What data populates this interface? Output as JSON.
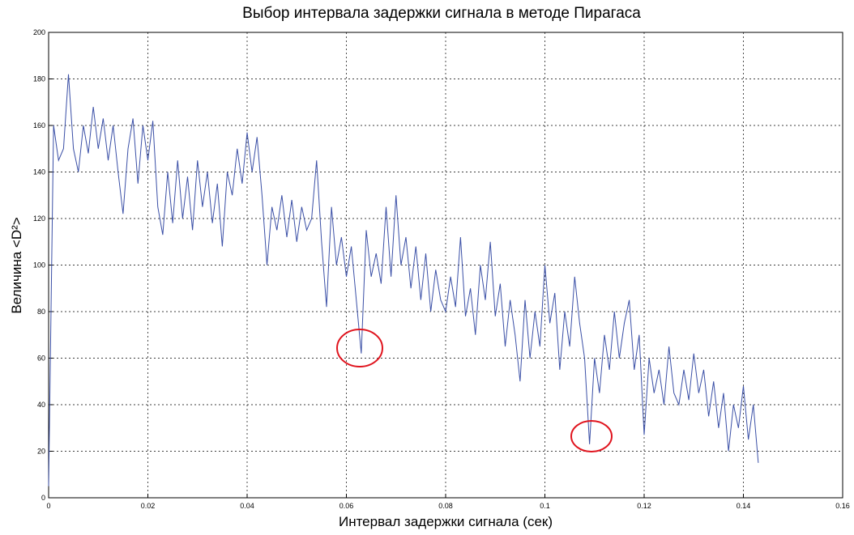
{
  "chart_data": {
    "type": "line",
    "title": "Выбор интервала задержки сигнала в методе Пирагаса",
    "xlabel": "Интервал задержки сигнала (сек)",
    "ylabel": "Величина <D²>",
    "xlim": [
      0,
      0.16
    ],
    "xticks": [
      0,
      0.02,
      0.04,
      0.06,
      0.08,
      0.1,
      0.12,
      0.14,
      0.16
    ],
    "ylim": [
      0,
      200
    ],
    "yticks": [
      0,
      20,
      40,
      60,
      80,
      100,
      120,
      140,
      160,
      180,
      200
    ],
    "grid": true,
    "x": [
      0,
      0.001,
      0.002,
      0.003,
      0.004,
      0.005,
      0.006,
      0.007,
      0.008,
      0.009,
      0.01,
      0.011,
      0.012,
      0.013,
      0.014,
      0.015,
      0.016,
      0.017,
      0.018,
      0.019,
      0.02,
      0.021,
      0.022,
      0.023,
      0.024,
      0.025,
      0.026,
      0.027,
      0.028,
      0.029,
      0.03,
      0.031,
      0.032,
      0.033,
      0.034,
      0.035,
      0.036,
      0.037,
      0.038,
      0.039,
      0.04,
      0.041,
      0.042,
      0.043,
      0.044,
      0.045,
      0.046,
      0.047,
      0.048,
      0.049,
      0.05,
      0.051,
      0.052,
      0.053,
      0.054,
      0.055,
      0.056,
      0.057,
      0.058,
      0.059,
      0.06,
      0.061,
      0.062,
      0.063,
      0.064,
      0.065,
      0.066,
      0.067,
      0.068,
      0.069,
      0.07,
      0.071,
      0.072,
      0.073,
      0.074,
      0.075,
      0.076,
      0.077,
      0.078,
      0.079,
      0.08,
      0.081,
      0.082,
      0.083,
      0.084,
      0.085,
      0.086,
      0.087,
      0.088,
      0.089,
      0.09,
      0.091,
      0.092,
      0.093,
      0.094,
      0.095,
      0.096,
      0.097,
      0.098,
      0.099,
      0.1,
      0.101,
      0.102,
      0.103,
      0.104,
      0.105,
      0.106,
      0.107,
      0.108,
      0.109,
      0.11,
      0.111,
      0.112,
      0.113,
      0.114,
      0.115,
      0.116,
      0.117,
      0.118,
      0.119,
      0.12,
      0.121,
      0.122,
      0.123,
      0.124,
      0.125,
      0.126,
      0.127,
      0.128,
      0.129,
      0.13,
      0.131,
      0.132,
      0.133,
      0.134,
      0.135,
      0.136,
      0.137,
      0.138,
      0.139,
      0.14,
      0.141,
      0.142,
      0.143
    ],
    "series": [
      {
        "color": "#3a4fa6",
        "values": [
          5,
          160,
          145,
          150,
          182,
          150,
          140,
          160,
          148,
          168,
          150,
          163,
          145,
          160,
          140,
          122,
          150,
          163,
          135,
          160,
          145,
          162,
          125,
          113,
          140,
          118,
          145,
          120,
          138,
          115,
          145,
          125,
          140,
          118,
          135,
          108,
          140,
          130,
          150,
          135,
          157,
          140,
          155,
          130,
          100,
          125,
          115,
          130,
          112,
          128,
          110,
          125,
          115,
          120,
          145,
          110,
          82,
          125,
          100,
          112,
          95,
          108,
          85,
          62,
          115,
          95,
          105,
          92,
          125,
          95,
          130,
          100,
          112,
          90,
          108,
          85,
          105,
          80,
          98,
          85,
          80,
          95,
          82,
          112,
          78,
          90,
          70,
          100,
          85,
          110,
          78,
          92,
          65,
          85,
          70,
          50,
          85,
          60,
          80,
          65,
          100,
          75,
          88,
          55,
          80,
          65,
          95,
          75,
          60,
          23,
          60,
          45,
          70,
          55,
          80,
          60,
          75,
          85,
          55,
          70,
          27,
          60,
          45,
          55,
          40,
          65,
          45,
          40,
          55,
          42,
          62,
          45,
          55,
          35,
          50,
          30,
          45,
          20,
          40,
          30,
          48,
          25,
          40,
          15
        ]
      }
    ]
  }
}
